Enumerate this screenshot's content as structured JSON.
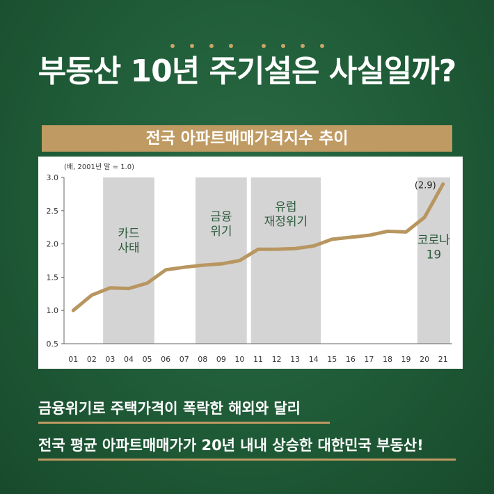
{
  "title": "부동산 10년 주기설은 사실일까?",
  "banner": "전국 아파트매매가격지수 추이",
  "colors": {
    "background": "#1f5b37",
    "accent": "#bf9a62",
    "line": "#b89660",
    "shade": "#d4d4d4",
    "text_dark": "#2c5a3c"
  },
  "captions": [
    "금융위기로 주택가격이 폭락한 해외와 달리",
    "전국 평균 아파트매매가가 20년 내내 상승한 대한민국 부동산!"
  ],
  "chart_data": {
    "type": "line",
    "unit_note": "(배, 2001년 말 = 1.0)",
    "x": [
      "01",
      "02",
      "03",
      "04",
      "05",
      "06",
      "07",
      "08",
      "09",
      "10",
      "11",
      "12",
      "13",
      "14",
      "15",
      "16",
      "17",
      "18",
      "19",
      "20",
      "21"
    ],
    "y": [
      1.0,
      1.23,
      1.34,
      1.33,
      1.41,
      1.61,
      1.65,
      1.68,
      1.7,
      1.75,
      1.92,
      1.92,
      1.93,
      1.97,
      2.07,
      2.1,
      2.13,
      2.19,
      2.18,
      2.4,
      2.9
    ],
    "ylim": [
      0.5,
      3.0
    ],
    "yticks": [
      "3.0",
      "2.5",
      "2.0",
      "1.5",
      "1.0",
      "0.5"
    ],
    "periods": [
      {
        "label": [
          "카드",
          "사태"
        ],
        "start": "03",
        "end": "05"
      },
      {
        "label": [
          "금융",
          "위기"
        ],
        "start": "08",
        "end": "10"
      },
      {
        "label": [
          "유럽",
          "재정위기"
        ],
        "start": "11",
        "end": "14"
      },
      {
        "label": [
          "코로나",
          "19"
        ],
        "start": "20",
        "end": "21"
      }
    ],
    "end_label": "(2.9)"
  }
}
